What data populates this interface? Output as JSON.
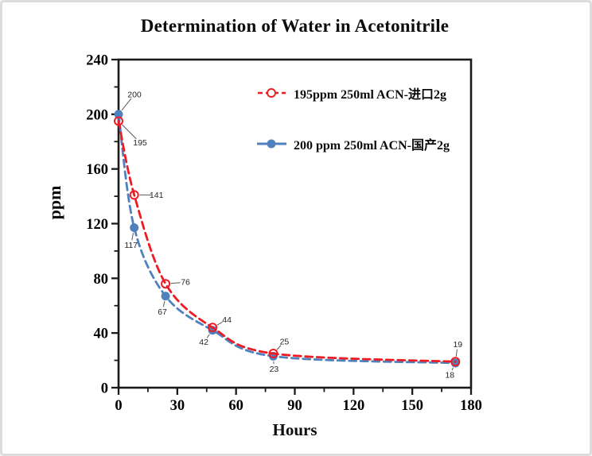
{
  "frame": {
    "background": "#ffffff",
    "border_color": "#dcdcdc"
  },
  "chart_data": {
    "type": "line",
    "title": "Determination of Water in Acetonitrile",
    "xlabel": "Hours",
    "ylabel": "ppm",
    "xlim": [
      0,
      180
    ],
    "ylim": [
      0,
      240
    ],
    "x_major_ticks": [
      0,
      30,
      60,
      90,
      120,
      150,
      180
    ],
    "x_minor_step": 15,
    "y_major_ticks": [
      0,
      40,
      80,
      120,
      160,
      200,
      240
    ],
    "y_minor_step": 20,
    "grid": false,
    "legend_position": "inside-top-center",
    "axis_color": "#1a1a1a",
    "data_label_color": "#262626",
    "leader_line_color": "#595959",
    "series": [
      {
        "key": "imported",
        "name": "195ppm  250ml ACN-进口2g",
        "color": "#ed1c24",
        "marker": "open-circle",
        "line_style": "dashed",
        "points": [
          {
            "x": 0,
            "y": 195,
            "label": "195",
            "label_dx": 27,
            "label_dy": 27
          },
          {
            "x": 8,
            "y": 141,
            "label": "141",
            "label_dx": 28,
            "label_dy": 0
          },
          {
            "x": 24,
            "y": 76,
            "label": "76",
            "label_dx": 25,
            "label_dy": -2
          },
          {
            "x": 48,
            "y": 44,
            "label": "44",
            "label_dx": 18,
            "label_dy": -10
          },
          {
            "x": 79,
            "y": 25,
            "label": "25",
            "label_dx": 14,
            "label_dy": -15
          },
          {
            "x": 172,
            "y": 19,
            "label": "19",
            "label_dx": 3,
            "label_dy": -22
          }
        ]
      },
      {
        "key": "domestic",
        "name": "200 ppm 250ml ACN-国产2g",
        "color": "#4f81bd",
        "marker": "filled-circle",
        "line_style": "dashed",
        "points": [
          {
            "x": 0,
            "y": 200,
            "label": "200",
            "label_dx": 20,
            "label_dy": -25
          },
          {
            "x": 8,
            "y": 117,
            "label": "117",
            "label_dx": -4,
            "label_dy": 22
          },
          {
            "x": 24,
            "y": 67,
            "label": "67",
            "label_dx": -4,
            "label_dy": 20
          },
          {
            "x": 48,
            "y": 42,
            "label": "42",
            "label_dx": -11,
            "label_dy": 15
          },
          {
            "x": 79,
            "y": 23,
            "label": "23",
            "label_dx": 1,
            "label_dy": 16
          },
          {
            "x": 172,
            "y": 18,
            "label": "18",
            "label_dx": -7,
            "label_dy": 15
          }
        ]
      }
    ]
  }
}
